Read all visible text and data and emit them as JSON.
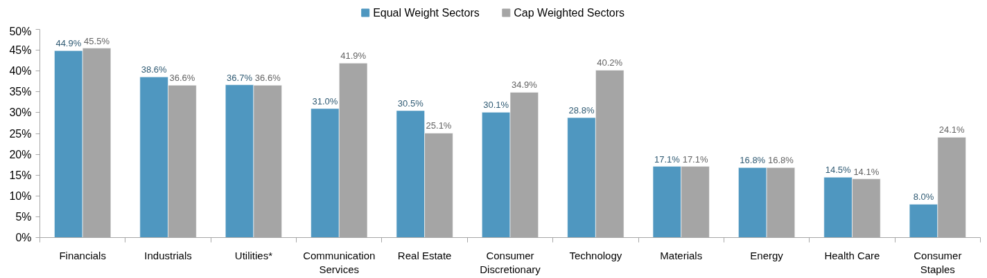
{
  "chart_data": {
    "type": "bar",
    "categories": [
      "Financials",
      "Industrials",
      "Utilities*",
      "Communication Services",
      "Real Estate",
      "Consumer Discretionary",
      "Technology",
      "Materials",
      "Energy",
      "Health Care",
      "Consumer Staples"
    ],
    "series": [
      {
        "name": "Equal Weight Sectors",
        "color": "#4f97c0",
        "values": [
          44.9,
          38.6,
          36.7,
          31.0,
          30.5,
          30.1,
          28.8,
          17.1,
          16.8,
          14.5,
          8.0
        ],
        "value_labels": [
          "44.9%",
          "38.6%",
          "36.7%",
          "31.0%",
          "30.5%",
          "30.1%",
          "28.8%",
          "17.1%",
          "16.8%",
          "14.5%",
          "8.0%"
        ]
      },
      {
        "name": "Cap Weighted Sectors",
        "color": "#a5a5a5",
        "values": [
          45.5,
          36.6,
          36.6,
          41.9,
          25.1,
          34.9,
          40.2,
          17.1,
          16.8,
          14.1,
          24.1
        ],
        "value_labels": [
          "45.5%",
          "36.6%",
          "36.6%",
          "41.9%",
          "25.1%",
          "34.9%",
          "40.2%",
          "17.1%",
          "16.8%",
          "14.1%",
          "24.1%"
        ]
      }
    ],
    "ylim": [
      0,
      50
    ],
    "yticks": [
      {
        "value": 0,
        "label": "0%"
      },
      {
        "value": 5,
        "label": "5%"
      },
      {
        "value": 10,
        "label": "10%"
      },
      {
        "value": 15,
        "label": "15%"
      },
      {
        "value": 20,
        "label": "20%"
      },
      {
        "value": 25,
        "label": "25%"
      },
      {
        "value": 30,
        "label": "30%"
      },
      {
        "value": 35,
        "label": "35%"
      },
      {
        "value": 40,
        "label": "40%"
      },
      {
        "value": 45,
        "label": "45%"
      },
      {
        "value": 50,
        "label": "50%"
      }
    ],
    "legend": "top"
  }
}
